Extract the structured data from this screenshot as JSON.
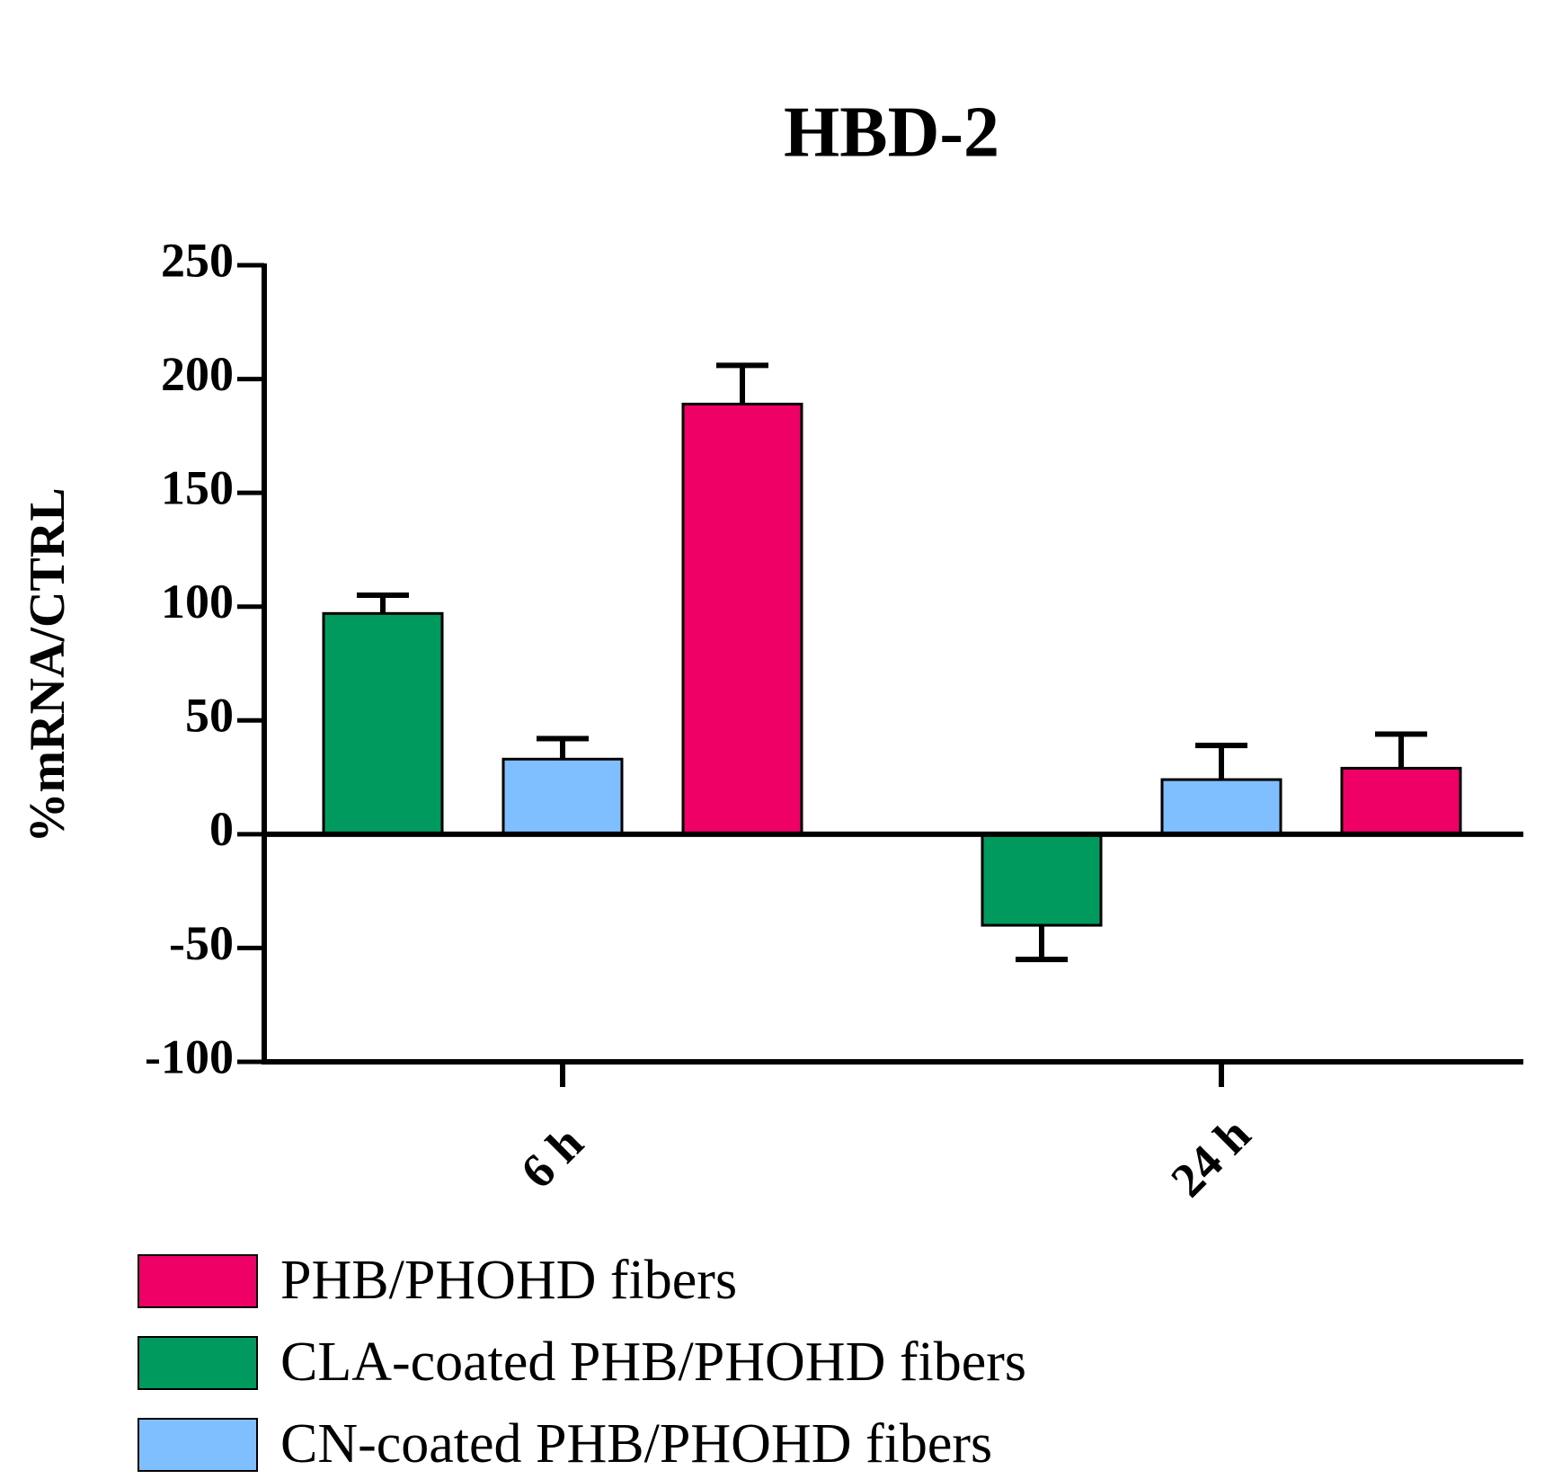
{
  "chart_data": {
    "type": "bar",
    "title": "HBD-2",
    "y_label": "%mRNA/CTRL",
    "categories": [
      "6 h",
      "24 h"
    ],
    "series": [
      {
        "name": "PHB/PHOHD fibers",
        "color": "#ee0066",
        "values": [
          189,
          29
        ],
        "errors": [
          17,
          15
        ]
      },
      {
        "name": "CLA-coated PHB/PHOHD fibers",
        "color": "#009a5e",
        "values": [
          97,
          -40
        ],
        "errors": [
          8,
          15
        ]
      },
      {
        "name": "CN-coated PHB/PHOHD fibers",
        "color": "#7fbfff",
        "values": [
          33,
          24
        ],
        "errors": [
          9,
          15
        ]
      }
    ],
    "ylim": [
      -100,
      250
    ],
    "yticks": [
      -100,
      -50,
      0,
      50,
      100,
      150,
      200,
      250
    ],
    "grid": false
  }
}
